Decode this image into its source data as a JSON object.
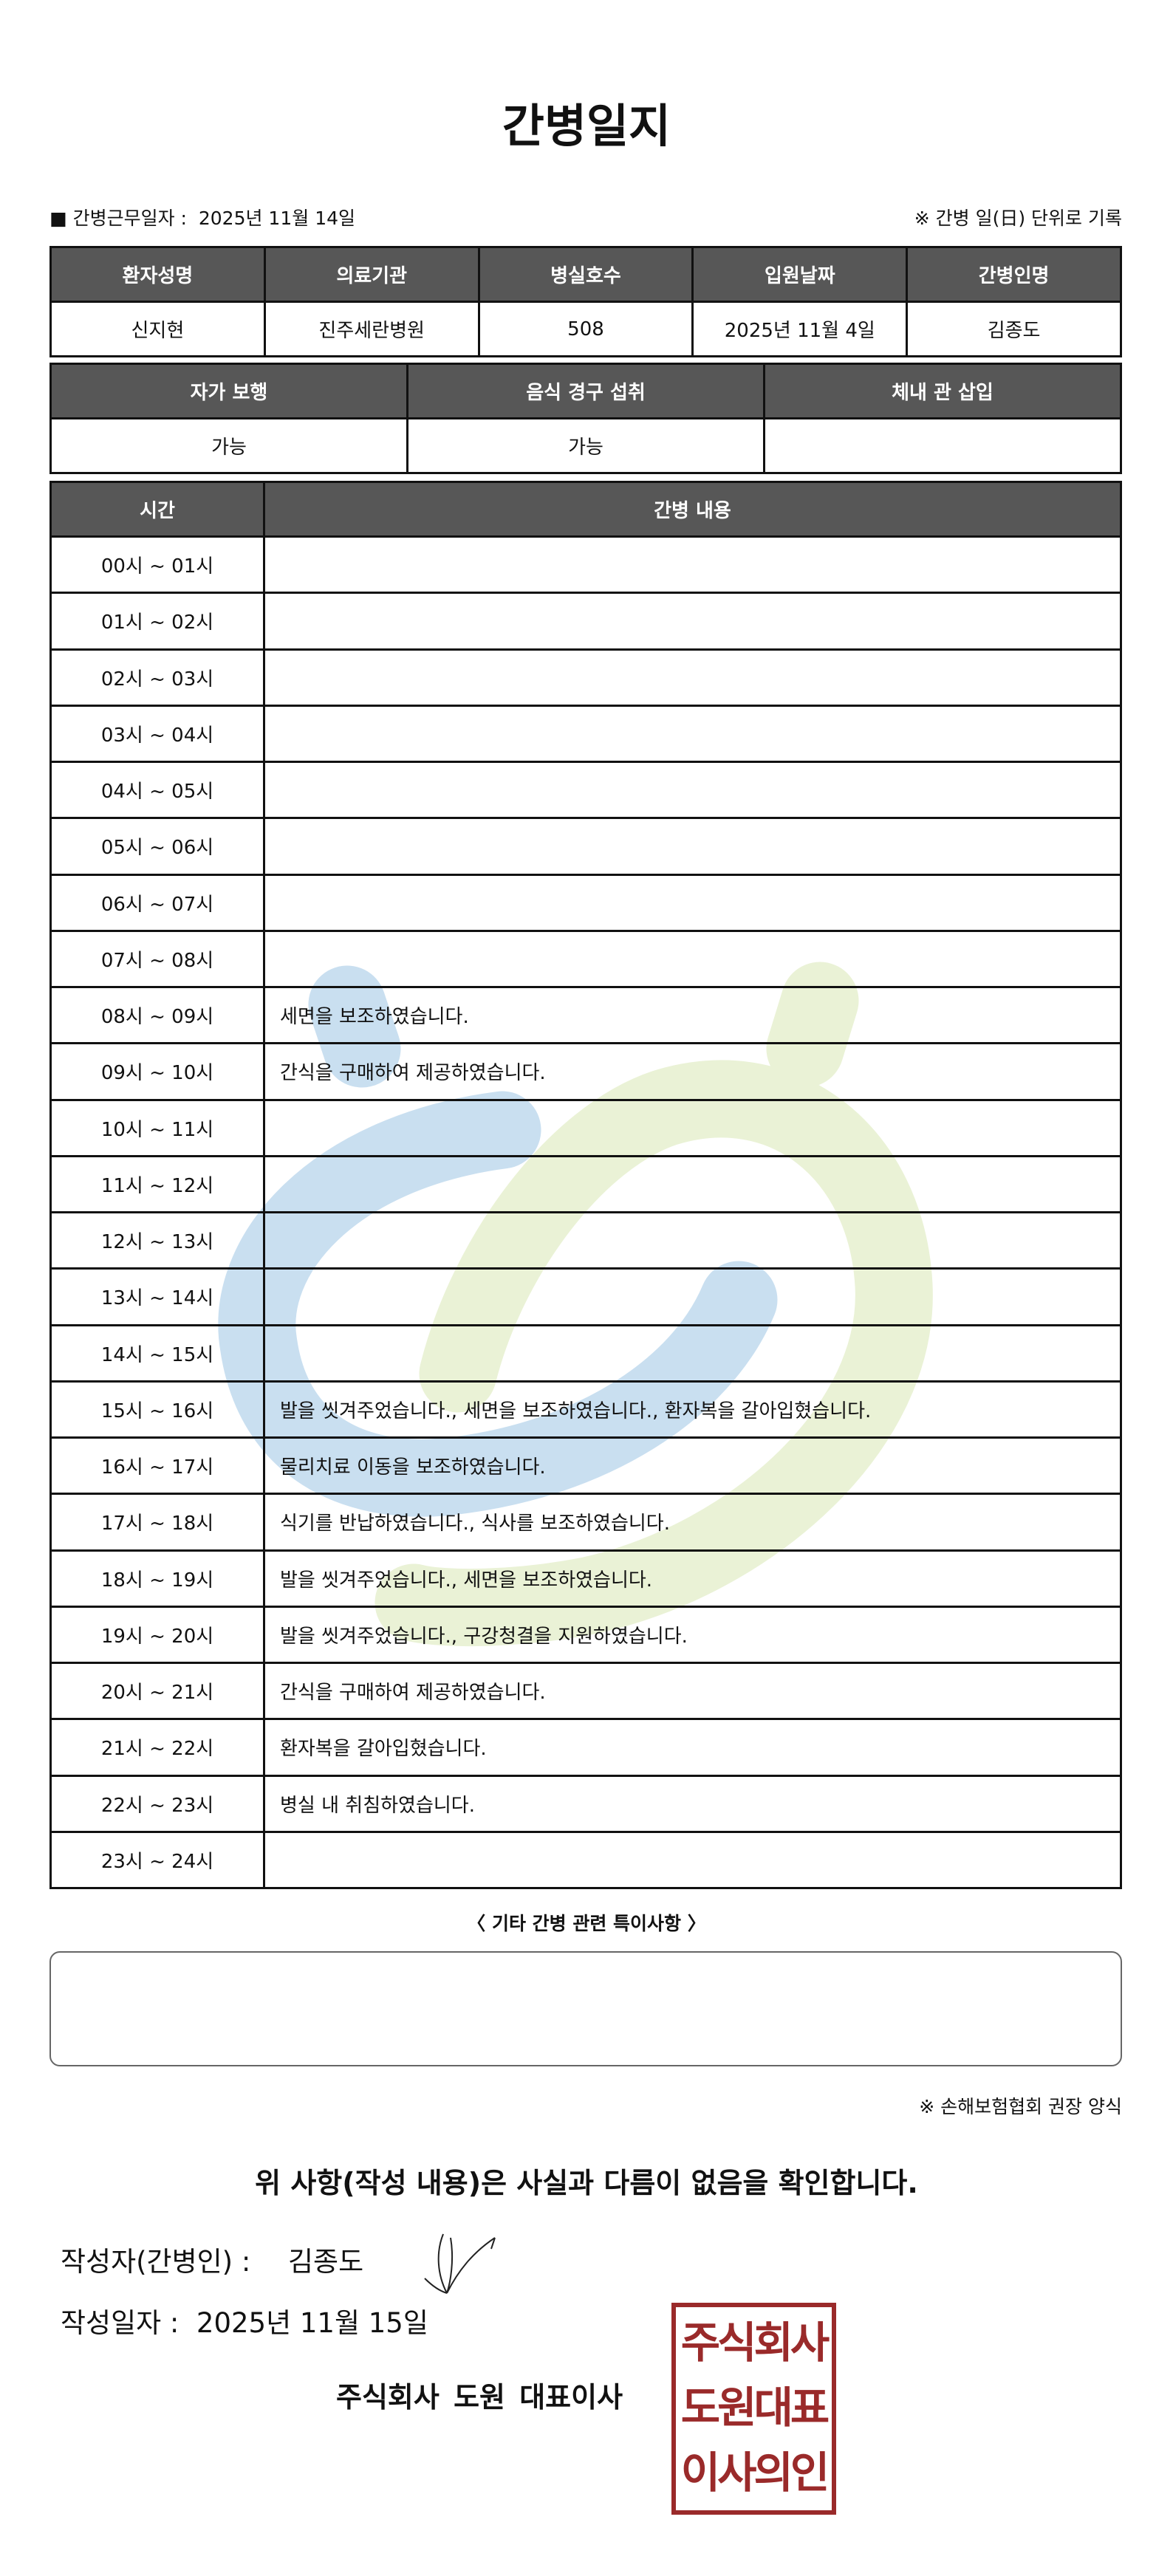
{
  "title": "간병일지",
  "work_date_label": "■ 간병근무일자 :",
  "work_date": "2025년 11월 14일",
  "record_note": "※ 간병 일(日) 단위로 기록",
  "patient_table": {
    "headers": [
      "환자성명",
      "의료기관",
      "병실호수",
      "입원날짜",
      "간병인명"
    ],
    "values": [
      "신지현",
      "진주세란병원",
      "508",
      "2025년 11월 4일",
      "김종도"
    ]
  },
  "status_table": {
    "headers": [
      "자가 보행",
      "음식 경구 섭취",
      "체내 관 삽입"
    ],
    "values": [
      "가능",
      "가능",
      ""
    ]
  },
  "log_table": {
    "headers": [
      "시간",
      "간병 내용"
    ],
    "rows": [
      {
        "time": "00시 ~ 01시",
        "content": ""
      },
      {
        "time": "01시 ~ 02시",
        "content": ""
      },
      {
        "time": "02시 ~ 03시",
        "content": ""
      },
      {
        "time": "03시 ~ 04시",
        "content": ""
      },
      {
        "time": "04시 ~ 05시",
        "content": ""
      },
      {
        "time": "05시 ~ 06시",
        "content": ""
      },
      {
        "time": "06시 ~ 07시",
        "content": ""
      },
      {
        "time": "07시 ~ 08시",
        "content": ""
      },
      {
        "time": "08시 ~ 09시",
        "content": "세면을 보조하였습니다."
      },
      {
        "time": "09시 ~ 10시",
        "content": "간식을 구매하여 제공하였습니다."
      },
      {
        "time": "10시 ~ 11시",
        "content": ""
      },
      {
        "time": "11시 ~ 12시",
        "content": ""
      },
      {
        "time": "12시 ~ 13시",
        "content": ""
      },
      {
        "time": "13시 ~ 14시",
        "content": ""
      },
      {
        "time": "14시 ~ 15시",
        "content": ""
      },
      {
        "time": "15시 ~ 16시",
        "content": "발을 씻겨주었습니다., 세면을 보조하였습니다., 환자복을 갈아입혔습니다."
      },
      {
        "time": "16시 ~ 17시",
        "content": "물리치료 이동을 보조하였습니다."
      },
      {
        "time": "17시 ~ 18시",
        "content": "식기를 반납하였습니다., 식사를 보조하였습니다."
      },
      {
        "time": "18시 ~ 19시",
        "content": "발을 씻겨주었습니다., 세면을 보조하였습니다."
      },
      {
        "time": "19시 ~ 20시",
        "content": "발을 씻겨주었습니다., 구강청결을 지원하였습니다."
      },
      {
        "time": "20시 ~ 21시",
        "content": "간식을 구매하여 제공하였습니다."
      },
      {
        "time": "21시 ~ 22시",
        "content": "환자복을 갈아입혔습니다."
      },
      {
        "time": "22시 ~ 23시",
        "content": "병실 내 취침하였습니다."
      },
      {
        "time": "23시 ~ 24시",
        "content": ""
      }
    ]
  },
  "remarks_label": "〈 기타 간병 관련 특이사항 〉",
  "remarks": "",
  "recommend_note": "※ 손해보험협회 권장 양식",
  "confirm_text": "위 사항(작성 내용)은 사실과 다름이 없음을 확인합니다.",
  "writer_label": "작성자(간병인) :",
  "writer_name": "김종도",
  "written_date_label": "작성일자 :",
  "written_date": "2025년 11월 15일",
  "company_line": "주식회사 도원  대표이사",
  "seal_text": "주식회사도원대표이사인인",
  "colors": {
    "header_bg": "#575757",
    "seal": "#9a2a2a",
    "watermark_blue": "#c9dff0",
    "watermark_green": "#eaf2d6"
  }
}
